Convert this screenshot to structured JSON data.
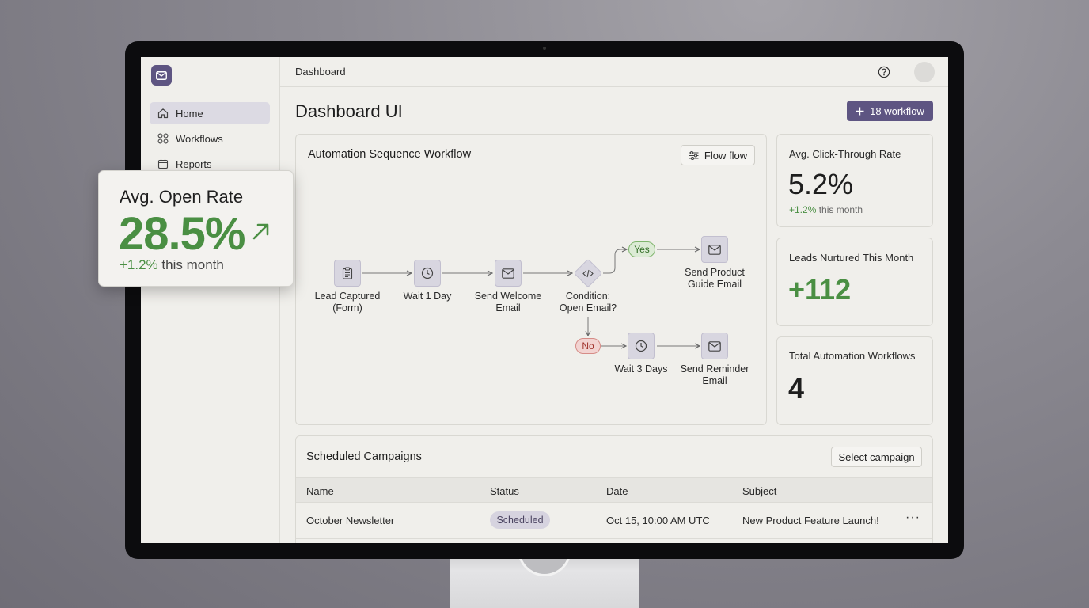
{
  "sidebar": {
    "items": [
      {
        "label": "Home",
        "icon": "home-icon",
        "active": true
      },
      {
        "label": "Workflows",
        "icon": "grid-icon"
      },
      {
        "label": "Reports",
        "icon": "calendar-icon"
      }
    ]
  },
  "topbar": {
    "breadcrumb": "Dashboard"
  },
  "page": {
    "title": "Dashboard UI",
    "primary_button": "18 workflow"
  },
  "workflow": {
    "title": "Automation Sequence Workflow",
    "filter_button": "Flow flow",
    "nodes": {
      "lead": "Lead Captured\n(Form)",
      "wait1": "Wait 1 Day",
      "welcome": "Send Welcome\nEmail",
      "condition": "Condition:\nOpen Email?",
      "guide": "Send Product\nGuide Email",
      "wait3": "Wait 3 Days",
      "reminder": "Send Reminder\nEmail"
    },
    "yes_label": "Yes",
    "no_label": "No"
  },
  "stats": {
    "ctr": {
      "label": "Avg. Click-Through Rate",
      "value": "5.2%",
      "change": "+1.2%",
      "change_suffix": " this month"
    },
    "leads": {
      "label": "Leads Nurtured This Month",
      "value": "+112"
    },
    "total": {
      "label": "Total Automation Workflows",
      "value": "4"
    }
  },
  "campaigns": {
    "title": "Scheduled Campaigns",
    "select_button": "Select campaign",
    "columns": [
      "Name",
      "Status",
      "Date",
      "Subject"
    ],
    "rows": [
      {
        "name": "October Newsletter",
        "status": "Scheduled",
        "date": "Oct 15, 10:00 AM UTC",
        "subject": "New Product Feature Launch!",
        "more": "···"
      }
    ]
  },
  "float_card": {
    "label": "Avg. Open Rate",
    "value": "28.5%",
    "change": "+1.2%",
    "change_suffix": " this month"
  },
  "colors": {
    "accent": "#5e5582",
    "positive": "#4a8f43",
    "negative": "#a0312b"
  }
}
